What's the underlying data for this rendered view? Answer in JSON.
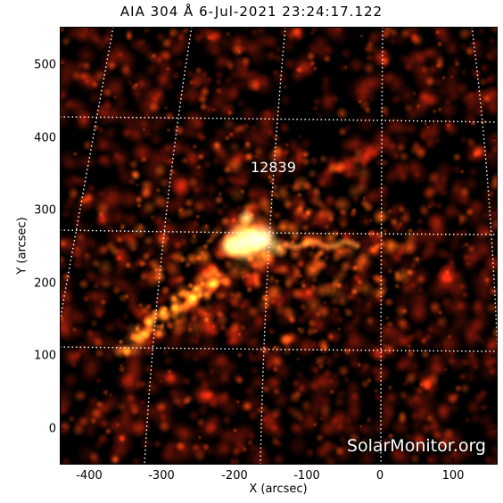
{
  "title": "AIA 304 Å   6-Jul-2021 23:24:17.122",
  "region_label": "12839",
  "watermark": "SolarMonitor.org",
  "xlabel": "X (arcsec)",
  "ylabel": "Y (arcsec)",
  "x_ticks": [
    "-400",
    "-300",
    "-200",
    "-100",
    "0",
    "100"
  ],
  "y_ticks": [
    "0",
    "100",
    "200",
    "300",
    "400",
    "500"
  ],
  "x_range": [
    -440,
    160
  ],
  "y_range": [
    -45,
    555
  ],
  "colors": {
    "bright": "#ffffff",
    "hot": "#ff8c1a",
    "mid": "#b52a0a",
    "dark": "#000000"
  }
}
